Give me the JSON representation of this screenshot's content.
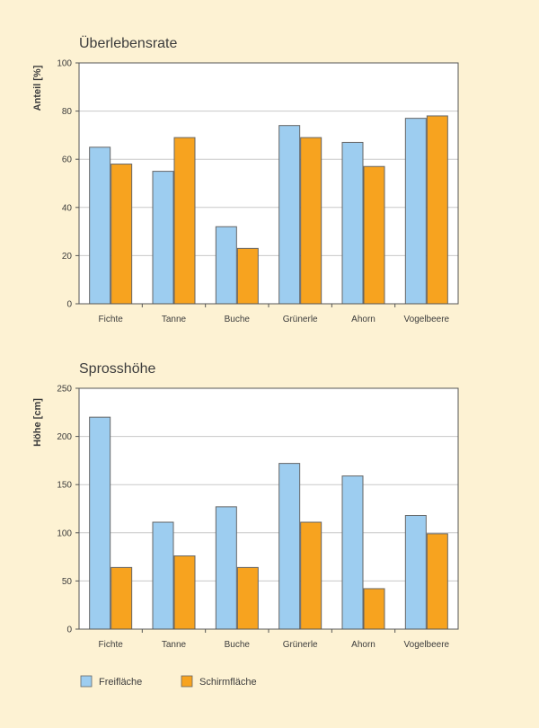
{
  "legend": [
    {
      "name": "Freifläche",
      "color": "#9dcdf0"
    },
    {
      "name": "Schirmfläche",
      "color": "#f7a31f"
    }
  ],
  "chart_data": [
    {
      "type": "bar",
      "title": "Überlebensrate",
      "ylabel": "Anteil [%]",
      "xlabel": "",
      "categories": [
        "Fichte",
        "Tanne",
        "Buche",
        "Grünerle",
        "Ahorn",
        "Vogelbeere"
      ],
      "ylim": [
        0,
        100
      ],
      "yticks": [
        0,
        20,
        40,
        60,
        80,
        100
      ],
      "grid": true,
      "series": [
        {
          "name": "Freifläche",
          "color": "#9dcdf0",
          "values": [
            65,
            55,
            32,
            74,
            67,
            77
          ]
        },
        {
          "name": "Schirmfläche",
          "color": "#f7a31f",
          "values": [
            58,
            69,
            23,
            69,
            57,
            78
          ]
        }
      ]
    },
    {
      "type": "bar",
      "title": "Sprosshöhe",
      "ylabel": "Höhe [cm]",
      "xlabel": "",
      "categories": [
        "Fichte",
        "Tanne",
        "Buche",
        "Grünerle",
        "Ahorn",
        "Vogelbeere"
      ],
      "ylim": [
        0,
        250
      ],
      "yticks": [
        0,
        50,
        100,
        150,
        200,
        250
      ],
      "grid": true,
      "series": [
        {
          "name": "Freifläche",
          "color": "#9dcdf0",
          "values": [
            220,
            111,
            127,
            172,
            159,
            118
          ]
        },
        {
          "name": "Schirmfläche",
          "color": "#f7a31f",
          "values": [
            64,
            76,
            64,
            111,
            42,
            99
          ]
        }
      ]
    }
  ]
}
